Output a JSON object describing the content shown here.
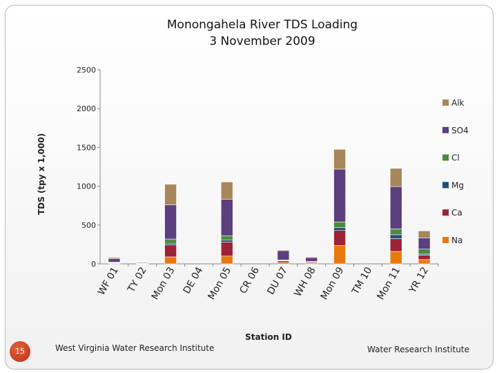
{
  "page": {
    "slide_number": "15",
    "footer_left": "West Virginia Water Research Institute",
    "footer_right": "Water Research Institute"
  },
  "chart_data": {
    "type": "bar",
    "stacked": true,
    "title": "Monongahela River TDS Loading",
    "subtitle": "3 November 2009",
    "xlabel": "Station ID",
    "ylabel": "TDS (tpy x 1,000)",
    "ylim": [
      0,
      2500
    ],
    "yticks": [
      "0",
      "500",
      "1000",
      "1500",
      "2000",
      "2500"
    ],
    "categories": [
      "WF 01",
      "TY 02",
      "Mon 03",
      "DE 04",
      "Mon 05",
      "CR 06",
      "DU 07",
      "WH 08",
      "Mon 09",
      "TM 10",
      "Mon 11",
      "YR 12"
    ],
    "legend_position": "right",
    "series": [
      {
        "name": "Na",
        "color": "#e8780e",
        "values": [
          5,
          3,
          90,
          0,
          100,
          0,
          20,
          10,
          235,
          0,
          160,
          55
        ]
      },
      {
        "name": "Ca",
        "color": "#9b2335",
        "values": [
          10,
          4,
          155,
          0,
          180,
          0,
          20,
          15,
          195,
          0,
          165,
          55
        ]
      },
      {
        "name": "Mg",
        "color": "#1f4e79",
        "values": [
          2,
          1,
          20,
          0,
          25,
          0,
          4,
          2,
          35,
          0,
          50,
          15
        ]
      },
      {
        "name": "Cl",
        "color": "#4e8a3e",
        "values": [
          5,
          2,
          55,
          0,
          55,
          0,
          6,
          4,
          75,
          0,
          75,
          65
        ]
      },
      {
        "name": "SO4",
        "color": "#5b3f7e",
        "values": [
          45,
          10,
          440,
          0,
          470,
          0,
          120,
          50,
          680,
          0,
          545,
          145
        ]
      },
      {
        "name": "Alk",
        "color": "#a8865a",
        "values": [
          15,
          5,
          265,
          0,
          225,
          0,
          10,
          10,
          255,
          0,
          235,
          90
        ]
      }
    ]
  }
}
